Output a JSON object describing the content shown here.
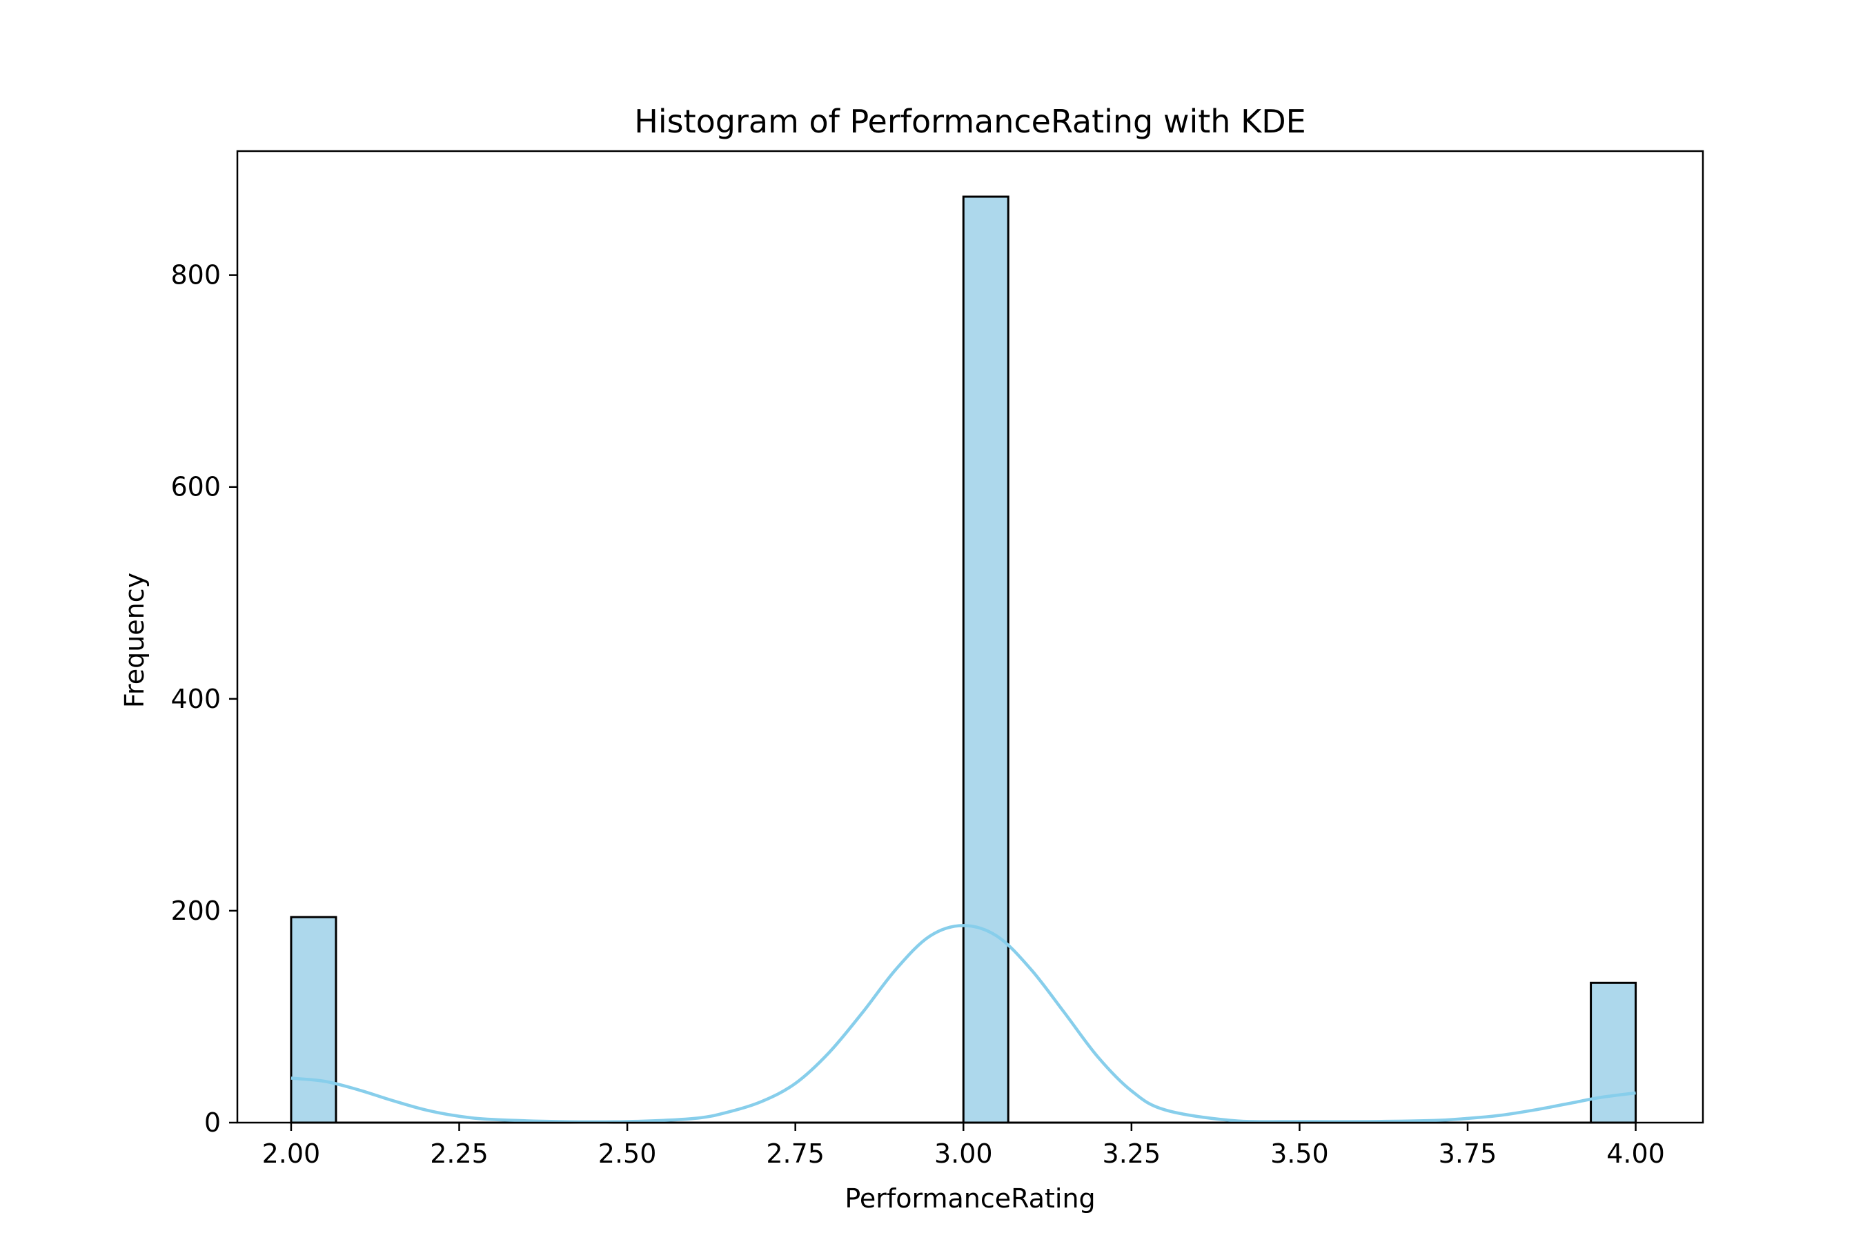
{
  "colors": {
    "bar_fill": "#add8ec",
    "bar_edge": "#000000",
    "kde_line": "#87ceeb",
    "axes": "#000000",
    "background": "#ffffff"
  },
  "chart_data": {
    "type": "bar",
    "title": "Histogram of PerformanceRating with KDE",
    "xlabel": "PerformanceRating",
    "ylabel": "Frequency",
    "xlim": [
      1.92,
      4.1
    ],
    "ylim": [
      0,
      917
    ],
    "xticks": [
      2.0,
      2.25,
      2.5,
      2.75,
      3.0,
      3.25,
      3.5,
      3.75,
      4.0
    ],
    "xtick_labels": [
      "2.00",
      "2.25",
      "2.50",
      "2.75",
      "3.00",
      "3.25",
      "3.50",
      "3.75",
      "4.00"
    ],
    "yticks": [
      0,
      200,
      400,
      600,
      800
    ],
    "ytick_labels": [
      "0",
      "200",
      "400",
      "600",
      "800"
    ],
    "bins": [
      {
        "x0": 2.0,
        "x1": 2.0667,
        "count": 194
      },
      {
        "x0": 3.0,
        "x1": 3.0667,
        "count": 874
      },
      {
        "x0": 3.9333,
        "x1": 4.0,
        "count": 132
      }
    ],
    "kde": {
      "x": [
        2.0,
        2.05,
        2.1,
        2.15,
        2.2,
        2.25,
        2.3,
        2.4,
        2.5,
        2.6,
        2.65,
        2.7,
        2.75,
        2.8,
        2.85,
        2.9,
        2.95,
        3.0,
        3.05,
        3.1,
        3.15,
        3.2,
        3.25,
        3.3,
        3.4,
        3.5,
        3.6,
        3.7,
        3.75,
        3.8,
        3.85,
        3.9,
        3.95,
        4.0
      ],
      "y": [
        42,
        39,
        31,
        21,
        12,
        6,
        3,
        1,
        1,
        4,
        10,
        20,
        37,
        66,
        104,
        145,
        176,
        186,
        176,
        145,
        104,
        62,
        30,
        12,
        2,
        1,
        1,
        2,
        4,
        7,
        12,
        18,
        24,
        28
      ]
    },
    "grid": false,
    "legend": false
  }
}
